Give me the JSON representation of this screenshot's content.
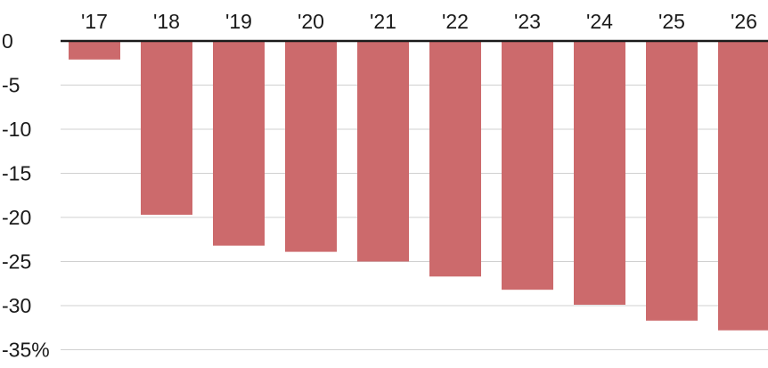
{
  "chart_data": {
    "type": "bar",
    "categories": [
      "'17",
      "'18",
      "'19",
      "'20",
      "'21",
      "'22",
      "'23",
      "'24",
      "'25",
      "'26"
    ],
    "values": [
      -2.1,
      -19.7,
      -23.2,
      -23.9,
      -25.0,
      -26.7,
      -28.2,
      -29.9,
      -31.7,
      -32.8
    ],
    "y_ticks": [
      0,
      -5,
      -10,
      -15,
      -20,
      -25,
      -30,
      -35
    ],
    "y_tick_labels": [
      "0",
      "-5",
      "-10",
      "-15",
      "-20",
      "-25",
      "-30",
      "-35%"
    ],
    "ylim": [
      -35,
      0
    ],
    "title": "",
    "xlabel": "",
    "ylabel": "",
    "grid": true,
    "x_axis_position": "top",
    "bar_color": "#cc6a6c"
  }
}
